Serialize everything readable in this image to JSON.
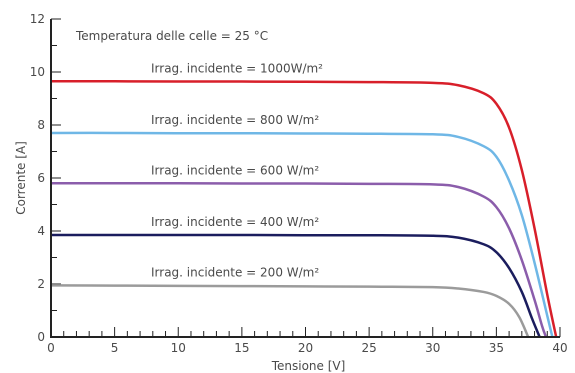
{
  "chart_data": {
    "type": "line",
    "annotation": "Temperatura delle celle = 25 °C",
    "xlabel": "Tensione [V]",
    "ylabel": "Corrente [A]",
    "xlim": [
      0,
      40
    ],
    "ylim": [
      0,
      12
    ],
    "x_ticks": [
      "0",
      "5",
      "10",
      "15",
      "20",
      "25",
      "30",
      "35",
      "40"
    ],
    "y_ticks": [
      "0",
      "2",
      "4",
      "6",
      "8",
      "10",
      "12"
    ],
    "grid": false,
    "series": [
      {
        "name": "Irrag. incidente = 1000W/m²",
        "color": "#d81f2a",
        "points": [
          [
            0,
            9.65
          ],
          [
            5,
            9.65
          ],
          [
            10,
            9.64
          ],
          [
            15,
            9.64
          ],
          [
            20,
            9.63
          ],
          [
            25,
            9.62
          ],
          [
            30,
            9.59
          ],
          [
            32,
            9.5
          ],
          [
            34,
            9.2
          ],
          [
            35,
            8.8
          ],
          [
            36,
            7.9
          ],
          [
            37,
            6.3
          ],
          [
            38,
            4.1
          ],
          [
            39,
            1.6
          ],
          [
            39.7,
            0
          ]
        ]
      },
      {
        "name": "Irrag. incidente = 800 W/m²",
        "color": "#6fb7e6",
        "points": [
          [
            0,
            7.7
          ],
          [
            5,
            7.7
          ],
          [
            10,
            7.69
          ],
          [
            15,
            7.69
          ],
          [
            20,
            7.68
          ],
          [
            25,
            7.67
          ],
          [
            30,
            7.65
          ],
          [
            32,
            7.55
          ],
          [
            34,
            7.2
          ],
          [
            35,
            6.8
          ],
          [
            36,
            5.9
          ],
          [
            37,
            4.6
          ],
          [
            38,
            2.8
          ],
          [
            39,
            0.8
          ],
          [
            39.4,
            0
          ]
        ]
      },
      {
        "name": "Irrag. incidente = 600 W/m²",
        "color": "#8b5dab",
        "points": [
          [
            0,
            5.8
          ],
          [
            5,
            5.8
          ],
          [
            10,
            5.8
          ],
          [
            15,
            5.79
          ],
          [
            20,
            5.79
          ],
          [
            25,
            5.78
          ],
          [
            30,
            5.76
          ],
          [
            32,
            5.66
          ],
          [
            34,
            5.3
          ],
          [
            35,
            4.9
          ],
          [
            36,
            4.1
          ],
          [
            37,
            2.9
          ],
          [
            38,
            1.4
          ],
          [
            38.6,
            0.4
          ],
          [
            38.9,
            0
          ]
        ]
      },
      {
        "name": "Irrag. incidente = 400 W/m²",
        "color": "#1b1d5e",
        "points": [
          [
            0,
            3.85
          ],
          [
            5,
            3.85
          ],
          [
            10,
            3.85
          ],
          [
            15,
            3.85
          ],
          [
            20,
            3.84
          ],
          [
            25,
            3.84
          ],
          [
            30,
            3.82
          ],
          [
            32,
            3.75
          ],
          [
            34,
            3.5
          ],
          [
            35,
            3.2
          ],
          [
            36,
            2.6
          ],
          [
            37,
            1.7
          ],
          [
            37.8,
            0.7
          ],
          [
            38.4,
            0
          ]
        ]
      },
      {
        "name": "Irrag. incidente = 200 W/m²",
        "color": "#9b9b9b",
        "points": [
          [
            0,
            1.95
          ],
          [
            5,
            1.94
          ],
          [
            10,
            1.93
          ],
          [
            15,
            1.92
          ],
          [
            20,
            1.91
          ],
          [
            25,
            1.9
          ],
          [
            30,
            1.88
          ],
          [
            32,
            1.83
          ],
          [
            34,
            1.7
          ],
          [
            35,
            1.55
          ],
          [
            36,
            1.25
          ],
          [
            36.8,
            0.75
          ],
          [
            37.5,
            0
          ]
        ]
      }
    ]
  }
}
